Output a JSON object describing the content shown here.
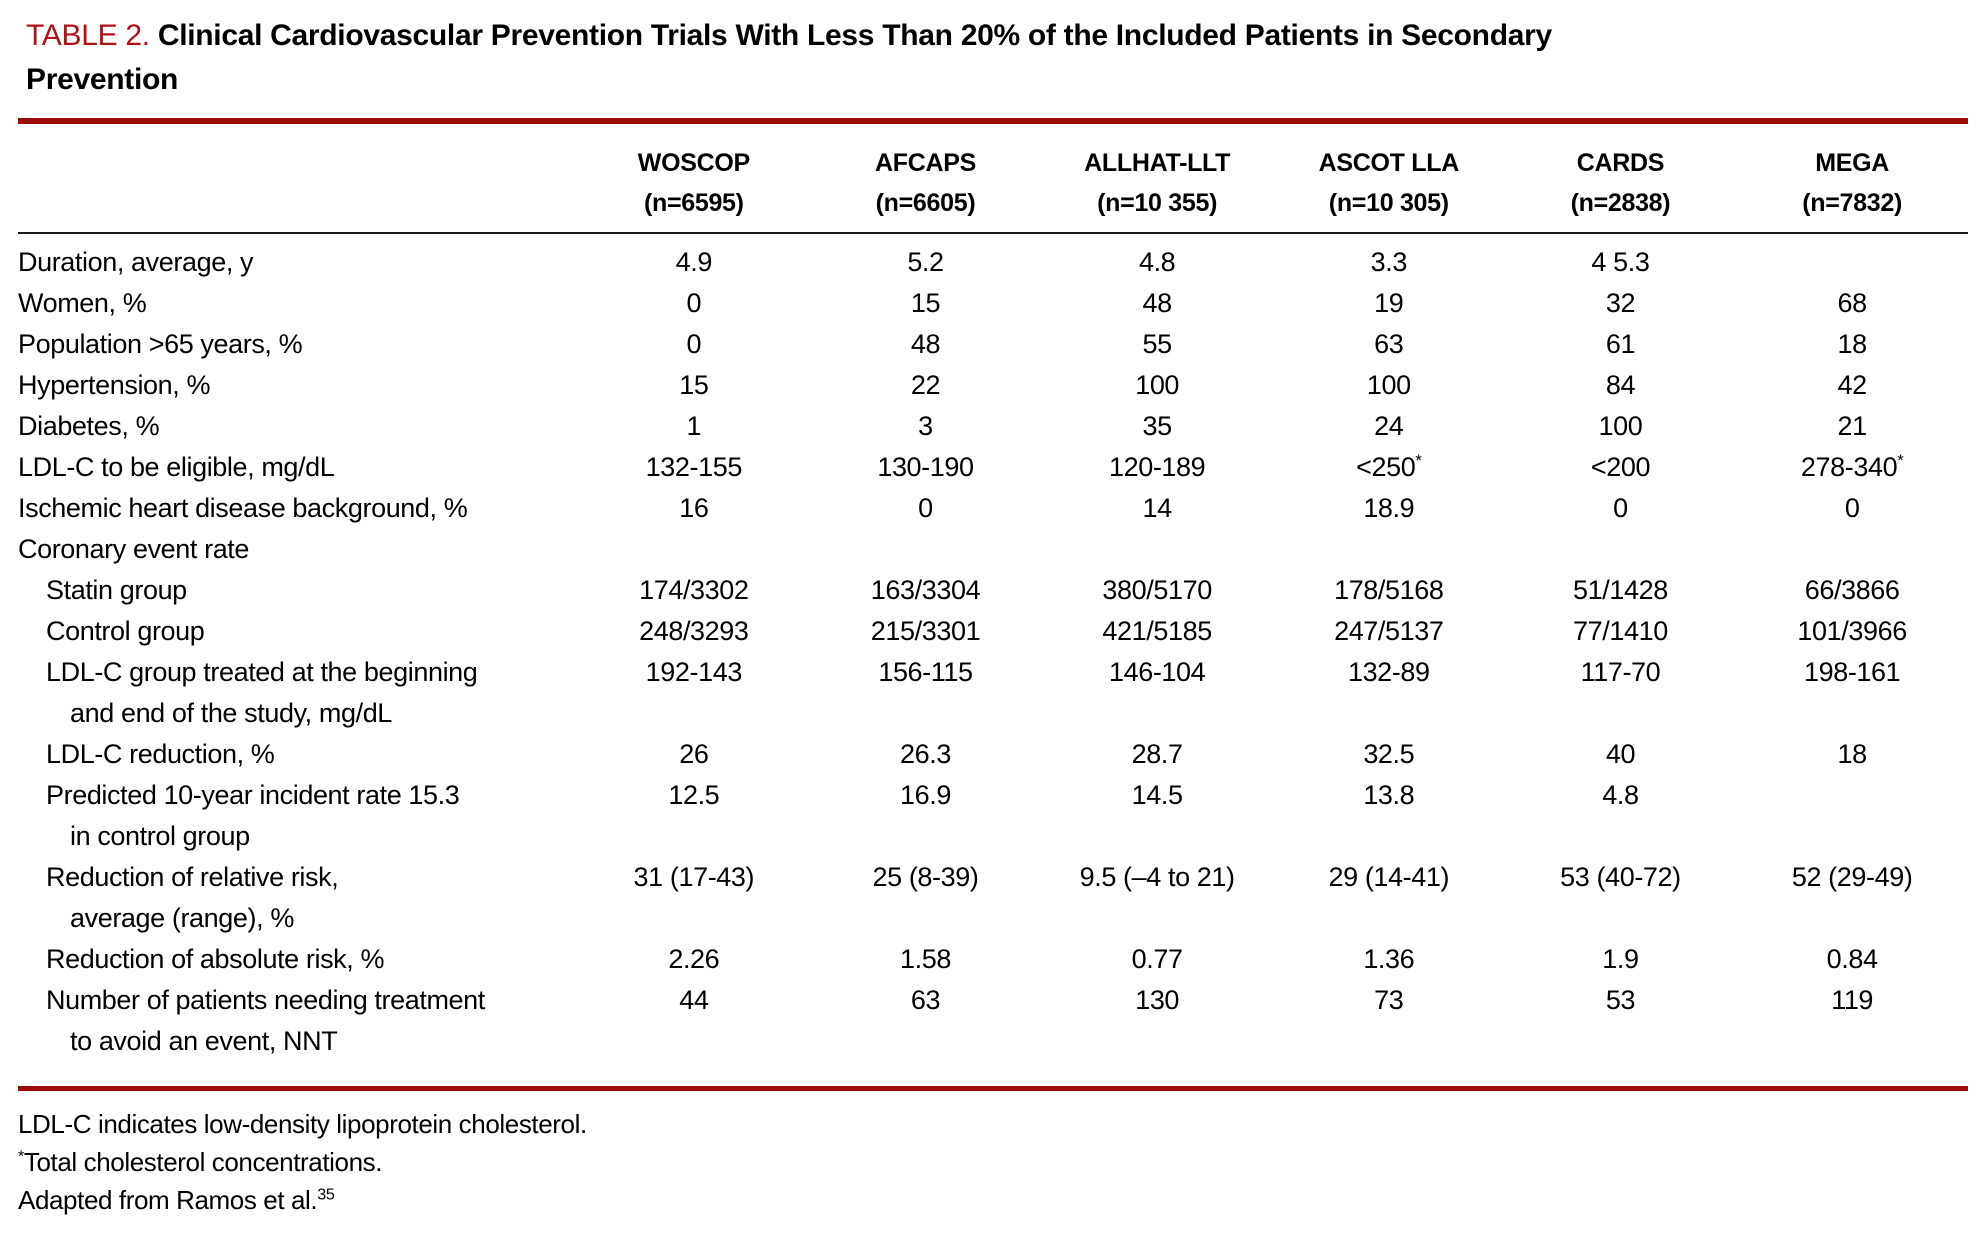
{
  "title": {
    "tag": "TABLE 2.",
    "line1": "Clinical Cardiovascular Prevention Trials With Less Than 20% of the Included Patients in Secondary",
    "line2": "Prevention"
  },
  "colors": {
    "accent_red": "#9c0a0a",
    "title_red": "#b01116"
  },
  "table": {
    "columns": [
      {
        "name": "WOSCOP",
        "n": "(n=6595)"
      },
      {
        "name": "AFCAPS",
        "n": "(n=6605)"
      },
      {
        "name": "ALLHAT-LLT",
        "n": "(n=10 355)"
      },
      {
        "name": "ASCOT LLA",
        "n": "(n=10 305)"
      },
      {
        "name": "CARDS",
        "n": "(n=2838)"
      },
      {
        "name": "MEGA",
        "n": "(n=7832)"
      }
    ],
    "rows": [
      {
        "label": "Duration, average, y",
        "indent": false,
        "values": [
          "4.9",
          "5.2",
          "4.8",
          "3.3",
          "4 5.3",
          ""
        ]
      },
      {
        "label": "Women, %",
        "indent": false,
        "values": [
          "0",
          "15",
          "48",
          "19",
          "32",
          "68"
        ]
      },
      {
        "label": "Population >65 years, %",
        "indent": false,
        "values": [
          "0",
          "48",
          "55",
          "63",
          "61",
          "18"
        ]
      },
      {
        "label": "Hypertension, %",
        "indent": false,
        "values": [
          "15",
          "22",
          "100",
          "100",
          "84",
          "42"
        ]
      },
      {
        "label": "Diabetes, %",
        "indent": false,
        "values": [
          "1",
          "3",
          "35",
          "24",
          "100",
          "21"
        ]
      },
      {
        "label": "LDL-C to be eligible, mg/dL",
        "indent": false,
        "values": [
          "132-155",
          "130-190",
          "120-189",
          "<250*",
          "<200",
          "278-340*"
        ]
      },
      {
        "label": "Ischemic heart disease background, %",
        "indent": false,
        "values": [
          "16",
          "0",
          "14",
          "18.9",
          "0",
          "0"
        ]
      },
      {
        "label": "Coronary event rate",
        "indent": false,
        "values": [
          "",
          "",
          "",
          "",
          "",
          ""
        ]
      },
      {
        "label": "Statin group",
        "indent": true,
        "values": [
          "174/3302",
          "163/3304",
          "380/5170",
          "178/5168",
          "51/1428",
          "66/3866"
        ]
      },
      {
        "label": "Control group",
        "indent": true,
        "values": [
          "248/3293",
          "215/3301",
          "421/5185",
          "247/5137",
          "77/1410",
          "101/3966"
        ]
      },
      {
        "label": "LDL-C group treated at the beginning",
        "label2": "and end of the study, mg/dL",
        "indent": true,
        "values": [
          "192-143",
          "156-115",
          "146-104",
          "132-89",
          "117-70",
          "198-161"
        ]
      },
      {
        "label": "LDL-C reduction, %",
        "indent": true,
        "values": [
          "26",
          "26.3",
          "28.7",
          "32.5",
          "40",
          "18"
        ]
      },
      {
        "label": "Predicted 10-year incident rate 15.3",
        "label2": "in control group",
        "indent": true,
        "values": [
          "12.5",
          "16.9",
          "14.5",
          "13.8",
          "4.8",
          ""
        ]
      },
      {
        "label": "Reduction of relative risk,",
        "label2": "average (range), %",
        "indent": true,
        "values": [
          "31 (17-43)",
          "25 (8-39)",
          "9.5 (–4 to 21)",
          "29 (14-41)",
          "53 (40-72)",
          "52 (29-49)"
        ]
      },
      {
        "label": "Reduction of absolute risk, %",
        "indent": true,
        "values": [
          "2.26",
          "1.58",
          "0.77",
          "1.36",
          "1.9",
          "0.84"
        ]
      },
      {
        "label": "Number of patients needing treatment",
        "label2": "to avoid an event, NNT",
        "indent": true,
        "values": [
          "44",
          "63",
          "130",
          "73",
          "53",
          "119"
        ]
      }
    ]
  },
  "footnotes": {
    "abbrev": "LDL-C indicates low-density lipoprotein cholesterol.",
    "star_sup": "*",
    "star_text": "Total cholesterol concentrations.",
    "adapted_text": "Adapted from Ramos et al.",
    "adapted_sup": "35"
  }
}
